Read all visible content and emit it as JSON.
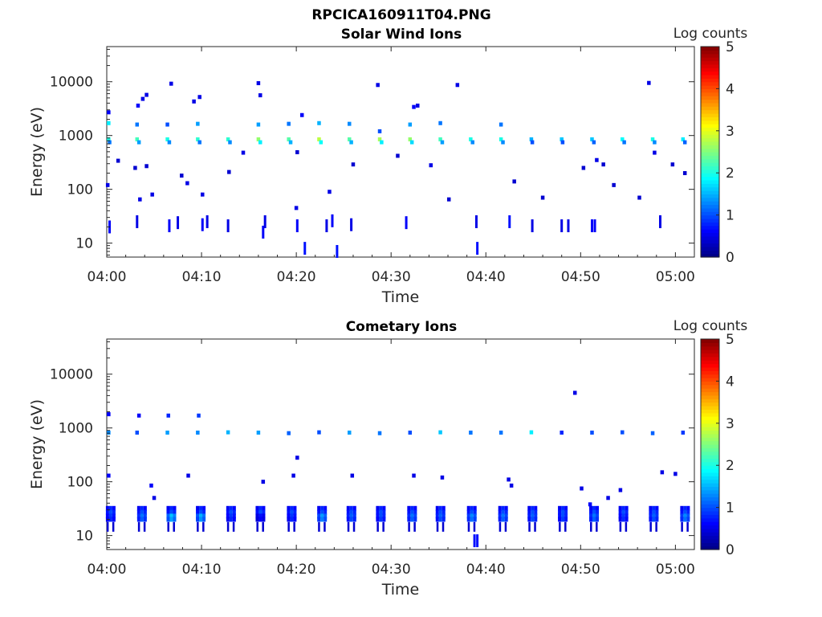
{
  "figure_title": "RPCICA160911T04.PNG",
  "chart_data": [
    {
      "type": "heatmap",
      "title": "Solar Wind Ions",
      "xlabel": "Time",
      "ylabel": "Energy (eV)",
      "x_tick_labels": [
        "04:00",
        "04:10",
        "04:20",
        "04:30",
        "04:40",
        "04:50",
        "05:00"
      ],
      "x_tick_minutes": [
        0,
        10,
        20,
        30,
        40,
        50,
        60
      ],
      "x_range_minutes": [
        0,
        62
      ],
      "y_scale": "log",
      "y_tick_labels": [
        "10",
        "100",
        "1000",
        "10000"
      ],
      "y_tick_values": [
        10,
        100,
        1000,
        10000
      ],
      "y_range": [
        5.5,
        45000
      ],
      "colorbar": {
        "label": "Log counts",
        "range": [
          0,
          5
        ],
        "tick_labels": [
          "0",
          "1",
          "2",
          "3",
          "4",
          "5"
        ],
        "colormap": "jet"
      },
      "cells": [
        [
          0.2,
          850,
          2.0
        ],
        [
          0.3,
          750,
          1.2
        ],
        [
          3.2,
          850,
          2.2
        ],
        [
          3.4,
          750,
          1.4
        ],
        [
          6.4,
          850,
          2.0
        ],
        [
          6.6,
          750,
          1.3
        ],
        [
          9.6,
          850,
          2.1
        ],
        [
          9.8,
          750,
          1.2
        ],
        [
          12.8,
          850,
          2.1
        ],
        [
          13.0,
          750,
          1.3
        ],
        [
          16.0,
          850,
          2.6
        ],
        [
          16.2,
          750,
          1.8
        ],
        [
          19.2,
          850,
          2.3
        ],
        [
          19.4,
          750,
          1.5
        ],
        [
          22.4,
          850,
          2.8
        ],
        [
          22.6,
          750,
          1.9
        ],
        [
          25.6,
          850,
          2.3
        ],
        [
          25.8,
          750,
          1.5
        ],
        [
          28.8,
          850,
          2.7
        ],
        [
          29.0,
          750,
          1.8
        ],
        [
          32.0,
          850,
          2.6
        ],
        [
          32.2,
          750,
          1.7
        ],
        [
          35.2,
          850,
          2.2
        ],
        [
          35.4,
          750,
          1.4
        ],
        [
          38.4,
          850,
          2.0
        ],
        [
          38.6,
          750,
          1.3
        ],
        [
          41.6,
          850,
          2.0
        ],
        [
          41.8,
          750,
          1.3
        ],
        [
          44.8,
          850,
          1.5
        ],
        [
          44.9,
          750,
          1.0
        ],
        [
          48.0,
          850,
          1.6
        ],
        [
          48.1,
          750,
          1.0
        ],
        [
          51.2,
          850,
          1.6
        ],
        [
          51.4,
          750,
          1.1
        ],
        [
          54.4,
          850,
          1.9
        ],
        [
          54.6,
          750,
          1.2
        ],
        [
          57.6,
          850,
          2.0
        ],
        [
          57.8,
          750,
          1.3
        ],
        [
          60.8,
          850,
          1.8
        ],
        [
          61.0,
          750,
          1.1
        ],
        [
          0.2,
          1700,
          1.8
        ],
        [
          3.2,
          1600,
          1.2
        ],
        [
          6.4,
          1600,
          1.0
        ],
        [
          9.6,
          1650,
          1.4
        ],
        [
          16.0,
          1600,
          1.4
        ],
        [
          19.2,
          1650,
          1.2
        ],
        [
          22.4,
          1700,
          1.5
        ],
        [
          25.6,
          1650,
          1.3
        ],
        [
          28.8,
          1200,
          1.0
        ],
        [
          32.0,
          1600,
          1.4
        ],
        [
          35.2,
          1700,
          1.2
        ],
        [
          41.6,
          1600,
          1.2
        ],
        [
          0.2,
          2700,
          0.6
        ],
        [
          3.3,
          3600,
          0.6
        ],
        [
          3.8,
          4800,
          0.5
        ],
        [
          4.2,
          5700,
          0.5
        ],
        [
          6.8,
          9200,
          0.5
        ],
        [
          9.2,
          4300,
          0.5
        ],
        [
          9.8,
          5200,
          0.5
        ],
        [
          16.0,
          9400,
          0.5
        ],
        [
          16.2,
          5600,
          0.5
        ],
        [
          20.6,
          2400,
          0.6
        ],
        [
          28.6,
          8700,
          0.5
        ],
        [
          32.4,
          3400,
          0.6
        ],
        [
          32.8,
          3600,
          0.5
        ],
        [
          37.0,
          8700,
          0.5
        ],
        [
          57.2,
          9500,
          0.5
        ],
        [
          1.2,
          340,
          0.4
        ],
        [
          3.0,
          250,
          0.4
        ],
        [
          4.2,
          270,
          0.4
        ],
        [
          7.9,
          180,
          0.4
        ],
        [
          8.5,
          130,
          0.5
        ],
        [
          12.9,
          210,
          0.4
        ],
        [
          14.4,
          480,
          0.5
        ],
        [
          20.1,
          490,
          0.4
        ],
        [
          26.0,
          290,
          0.4
        ],
        [
          30.7,
          420,
          0.4
        ],
        [
          34.2,
          280,
          0.5
        ],
        [
          43.0,
          140,
          0.4
        ],
        [
          50.3,
          250,
          0.4
        ],
        [
          51.7,
          350,
          0.5
        ],
        [
          52.4,
          290,
          0.4
        ],
        [
          57.8,
          480,
          0.5
        ],
        [
          59.7,
          290,
          0.4
        ],
        [
          61.0,
          200,
          0.4
        ],
        [
          0.1,
          120,
          0.5
        ],
        [
          3.5,
          65,
          0.5
        ],
        [
          4.8,
          80,
          0.5
        ],
        [
          10.1,
          80,
          0.5
        ],
        [
          20.0,
          45,
          0.5
        ],
        [
          23.5,
          90,
          0.5
        ],
        [
          36.1,
          65,
          0.4
        ],
        [
          46.0,
          70,
          0.4
        ],
        [
          53.5,
          120,
          0.4
        ],
        [
          56.2,
          70,
          0.4
        ]
      ],
      "low_energy_spikes": [
        [
          0.3,
          20,
          0.6
        ],
        [
          3.2,
          25,
          0.5
        ],
        [
          6.6,
          21,
          0.6
        ],
        [
          7.5,
          24,
          0.5
        ],
        [
          10.1,
          22,
          0.6
        ],
        [
          10.6,
          25,
          0.5
        ],
        [
          12.8,
          21,
          0.5
        ],
        [
          16.5,
          16,
          0.6
        ],
        [
          16.7,
          25,
          0.5
        ],
        [
          20.1,
          21,
          0.6
        ],
        [
          20.9,
          8,
          0.7
        ],
        [
          23.2,
          21,
          0.5
        ],
        [
          23.8,
          26,
          0.6
        ],
        [
          24.3,
          7,
          0.7
        ],
        [
          25.8,
          22,
          0.5
        ],
        [
          31.6,
          24,
          0.6
        ],
        [
          39.0,
          25,
          0.5
        ],
        [
          39.1,
          8,
          0.7
        ],
        [
          42.5,
          25,
          0.7
        ],
        [
          44.9,
          21,
          0.5
        ],
        [
          48.0,
          21,
          0.5
        ],
        [
          48.7,
          21,
          0.5
        ],
        [
          51.2,
          21,
          0.6
        ],
        [
          51.5,
          21,
          0.6
        ],
        [
          58.4,
          25,
          0.5
        ]
      ]
    },
    {
      "type": "heatmap",
      "title": "Cometary Ions",
      "xlabel": "Time",
      "ylabel": "Energy (eV)",
      "x_tick_labels": [
        "04:00",
        "04:10",
        "04:20",
        "04:30",
        "04:40",
        "04:50",
        "05:00"
      ],
      "x_tick_minutes": [
        0,
        10,
        20,
        30,
        40,
        50,
        60
      ],
      "x_range_minutes": [
        0,
        62
      ],
      "y_scale": "log",
      "y_tick_labels": [
        "10",
        "100",
        "1000",
        "10000"
      ],
      "y_tick_values": [
        10,
        100,
        1000,
        10000
      ],
      "y_range": [
        5.5,
        45000
      ],
      "colorbar": {
        "label": "Log counts",
        "range": [
          0,
          5
        ],
        "tick_labels": [
          "0",
          "1",
          "2",
          "3",
          "4",
          "5"
        ],
        "colormap": "jet"
      },
      "cells": [
        [
          0.2,
          820,
          1.3
        ],
        [
          3.2,
          820,
          1.0
        ],
        [
          6.4,
          820,
          1.4
        ],
        [
          9.6,
          820,
          1.3
        ],
        [
          12.8,
          830,
          1.5
        ],
        [
          16.0,
          820,
          1.4
        ],
        [
          19.2,
          800,
          1.1
        ],
        [
          22.4,
          830,
          1.0
        ],
        [
          25.6,
          820,
          1.4
        ],
        [
          28.8,
          800,
          1.2
        ],
        [
          32.0,
          820,
          1.0
        ],
        [
          35.2,
          830,
          1.6
        ],
        [
          38.4,
          820,
          1.2
        ],
        [
          41.6,
          820,
          1.2
        ],
        [
          44.8,
          830,
          1.8
        ],
        [
          48.0,
          820,
          0.8
        ],
        [
          51.2,
          820,
          1.0
        ],
        [
          54.4,
          830,
          1.0
        ],
        [
          57.6,
          800,
          1.1
        ],
        [
          60.8,
          820,
          0.9
        ],
        [
          0.2,
          1800,
          0.6
        ],
        [
          3.4,
          1700,
          0.6
        ],
        [
          6.5,
          1700,
          0.8
        ],
        [
          9.7,
          1700,
          0.9
        ],
        [
          49.4,
          4500,
          0.5
        ],
        [
          0.2,
          130,
          0.6
        ],
        [
          4.7,
          85,
          0.6
        ],
        [
          5.0,
          50,
          0.5
        ],
        [
          8.6,
          130,
          0.5
        ],
        [
          16.5,
          100,
          0.5
        ],
        [
          19.7,
          130,
          0.5
        ],
        [
          20.1,
          280,
          0.5
        ],
        [
          25.9,
          130,
          0.5
        ],
        [
          32.4,
          130,
          0.5
        ],
        [
          35.4,
          120,
          0.5
        ],
        [
          42.4,
          110,
          0.5
        ],
        [
          42.7,
          85,
          0.5
        ],
        [
          50.1,
          75,
          0.5
        ],
        [
          54.2,
          70,
          0.5
        ],
        [
          52.9,
          50,
          0.5
        ],
        [
          58.6,
          150,
          0.5
        ],
        [
          60.0,
          140,
          0.5
        ],
        [
          51.0,
          38,
          0.6
        ]
      ],
      "low_energy_bursts": [
        [
          0.5,
          0.9
        ],
        [
          3.8,
          1.2
        ],
        [
          6.9,
          1.6
        ],
        [
          10.0,
          1.5
        ],
        [
          13.2,
          0.9
        ],
        [
          16.3,
          0.7
        ],
        [
          19.6,
          0.9
        ],
        [
          22.8,
          1.4
        ],
        [
          25.9,
          1.1
        ],
        [
          29.0,
          1.0
        ],
        [
          32.3,
          1.2
        ],
        [
          35.3,
          1.1
        ],
        [
          38.6,
          1.3
        ],
        [
          41.9,
          1.2
        ],
        [
          45.0,
          1.1
        ],
        [
          48.2,
          1.0
        ],
        [
          51.5,
          1.2
        ],
        [
          54.6,
          0.9
        ],
        [
          57.8,
          1.1
        ],
        [
          61.1,
          1.3
        ]
      ],
      "low_energy_spikes": [
        [
          38.8,
          8,
          0.7
        ],
        [
          39.1,
          8,
          0.7
        ]
      ]
    }
  ]
}
